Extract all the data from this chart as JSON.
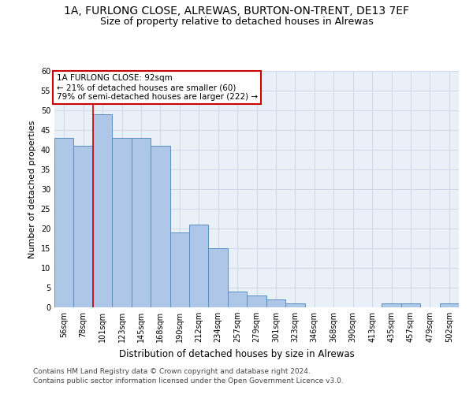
{
  "title_line1": "1A, FURLONG CLOSE, ALREWAS, BURTON-ON-TRENT, DE13 7EF",
  "title_line2": "Size of property relative to detached houses in Alrewas",
  "xlabel": "Distribution of detached houses by size in Alrewas",
  "ylabel": "Number of detached properties",
  "categories": [
    "56sqm",
    "78sqm",
    "101sqm",
    "123sqm",
    "145sqm",
    "168sqm",
    "190sqm",
    "212sqm",
    "234sqm",
    "257sqm",
    "279sqm",
    "301sqm",
    "323sqm",
    "346sqm",
    "368sqm",
    "390sqm",
    "413sqm",
    "435sqm",
    "457sqm",
    "479sqm",
    "502sqm"
  ],
  "values": [
    43,
    41,
    49,
    43,
    43,
    41,
    19,
    21,
    15,
    4,
    3,
    2,
    1,
    0,
    0,
    0,
    0,
    1,
    1,
    0,
    1
  ],
  "bar_color": "#aec6e8",
  "bar_edge_color": "#5a8fc0",
  "vline_x_index": 1.5,
  "vline_color": "#cc0000",
  "annotation_text": "1A FURLONG CLOSE: 92sqm\n← 21% of detached houses are smaller (60)\n79% of semi-detached houses are larger (222) →",
  "annotation_box_color": "#ffffff",
  "annotation_box_edge": "#cc0000",
  "ylim": [
    0,
    60
  ],
  "yticks": [
    0,
    5,
    10,
    15,
    20,
    25,
    30,
    35,
    40,
    45,
    50,
    55,
    60
  ],
  "grid_color": "#d0d8e8",
  "bg_color": "#eaf0f8",
  "footer_line1": "Contains HM Land Registry data © Crown copyright and database right 2024.",
  "footer_line2": "Contains public sector information licensed under the Open Government Licence v3.0.",
  "title_fontsize": 10,
  "subtitle_fontsize": 9,
  "xlabel_fontsize": 8.5,
  "ylabel_fontsize": 8,
  "tick_fontsize": 7,
  "annotation_fontsize": 7.5,
  "footer_fontsize": 6.5
}
